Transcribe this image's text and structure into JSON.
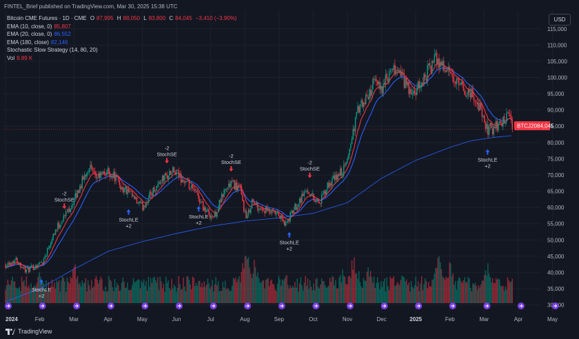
{
  "header": {
    "text": "FINTEL_Brief published on TradingView.com, Mar 30, 2025 15:38 UTC"
  },
  "legend": {
    "symbol": "Bitcoin CME Futures · 1D · CME",
    "ohlc": [
      {
        "label": "O",
        "value": "87,995"
      },
      {
        "label": "H",
        "value": "88,050"
      },
      {
        "label": "L",
        "value": "83,800"
      },
      {
        "label": "C",
        "value": "84,045"
      }
    ],
    "change": "−3,410 (−3.90%)",
    "ema10": {
      "label": "EMA (10, close, 0)",
      "value": "85,807"
    },
    "ema20": {
      "label": "EMA (20, close, 0)",
      "value": "86,552"
    },
    "ema180": {
      "label": "EMA (180, close)",
      "value": "82,146"
    },
    "strategy": "Stochastic Slow Strategy (14, 80, 20)",
    "vol": {
      "label": "Vol",
      "value": "9.89 K"
    }
  },
  "currency_button": "USD",
  "price_tag": {
    "symbol": "BTCJ2025",
    "value": "84,045"
  },
  "footer": {
    "brand": "TradingView"
  },
  "colors": {
    "background": "#131722",
    "bull": "#089981",
    "bear": "#f23645",
    "ema_fast": "#f23645",
    "ema_mid": "#2962ff",
    "ema_slow": "#2962ff"
  },
  "chart_data": {
    "type": "candlestick",
    "y_ticks": [
      30000,
      35000,
      40000,
      45000,
      50000,
      55000,
      60000,
      65000,
      70000,
      75000,
      80000,
      85000,
      90000,
      95000,
      100000,
      105000,
      110000,
      115000
    ],
    "y_tick_labels": [
      "30,000",
      "35,000",
      "40,000",
      "45,000",
      "50,000",
      "55,000",
      "60,000",
      "65,000",
      "70,000",
      "75,000",
      "80,000",
      "85,000",
      "90,000",
      "95,000",
      "100,000",
      "105,000",
      "110,000",
      "115,000"
    ],
    "ylim": [
      28000,
      117500
    ],
    "x_labels": [
      {
        "label": "2024",
        "month": 0,
        "bold": true
      },
      {
        "label": "Feb",
        "month": 1
      },
      {
        "label": "Mar",
        "month": 2
      },
      {
        "label": "Apr",
        "month": 3
      },
      {
        "label": "May",
        "month": 4
      },
      {
        "label": "Jun",
        "month": 5
      },
      {
        "label": "Jul",
        "month": 6
      },
      {
        "label": "Aug",
        "month": 7
      },
      {
        "label": "Sep",
        "month": 8
      },
      {
        "label": "Oct",
        "month": 9
      },
      {
        "label": "Nov",
        "month": 10
      },
      {
        "label": "Dec",
        "month": 11
      },
      {
        "label": "2025",
        "month": 12,
        "bold": true
      },
      {
        "label": "Feb",
        "month": 13
      },
      {
        "label": "Mar",
        "month": 14
      },
      {
        "label": "Apr",
        "month": 15
      },
      {
        "label": "May",
        "month": 16
      }
    ],
    "price_path": [
      [
        0,
        42500
      ],
      [
        0.3,
        44000
      ],
      [
        0.6,
        40500
      ],
      [
        0.8,
        41500
      ],
      [
        1.1,
        43500
      ],
      [
        1.4,
        52000
      ],
      [
        1.7,
        57000
      ],
      [
        2.0,
        62000
      ],
      [
        2.2,
        67000
      ],
      [
        2.45,
        73000
      ],
      [
        2.6,
        69000
      ],
      [
        2.8,
        70000
      ],
      [
        3.0,
        71000
      ],
      [
        3.2,
        69500
      ],
      [
        3.4,
        66000
      ],
      [
        3.6,
        64500
      ],
      [
        3.8,
        62000
      ],
      [
        4.0,
        60000
      ],
      [
        4.3,
        65000
      ],
      [
        4.6,
        69000
      ],
      [
        4.9,
        71000
      ],
      [
        5.1,
        69500
      ],
      [
        5.3,
        67000
      ],
      [
        5.6,
        64000
      ],
      [
        5.85,
        59000
      ],
      [
        6.1,
        57000
      ],
      [
        6.4,
        65000
      ],
      [
        6.6,
        67500
      ],
      [
        6.85,
        66000
      ],
      [
        7.05,
        56000
      ],
      [
        7.2,
        62000
      ],
      [
        7.4,
        60000
      ],
      [
        7.7,
        58500
      ],
      [
        8.0,
        57500
      ],
      [
        8.2,
        54500
      ],
      [
        8.4,
        59000
      ],
      [
        8.7,
        64000
      ],
      [
        8.85,
        65500
      ],
      [
        9.0,
        63000
      ],
      [
        9.2,
        61500
      ],
      [
        9.45,
        67000
      ],
      [
        9.7,
        69500
      ],
      [
        9.95,
        72500
      ],
      [
        10.1,
        80000
      ],
      [
        10.3,
        90000
      ],
      [
        10.5,
        92000
      ],
      [
        10.75,
        98000
      ],
      [
        11.0,
        97000
      ],
      [
        11.2,
        100000
      ],
      [
        11.45,
        103000
      ],
      [
        11.7,
        98000
      ],
      [
        11.9,
        94000
      ],
      [
        12.1,
        97000
      ],
      [
        12.35,
        102000
      ],
      [
        12.6,
        106000
      ],
      [
        12.85,
        103000
      ],
      [
        13.1,
        99000
      ],
      [
        13.4,
        96000
      ],
      [
        13.65,
        95000
      ],
      [
        13.9,
        90000
      ],
      [
        14.05,
        84000
      ],
      [
        14.3,
        84500
      ],
      [
        14.55,
        86500
      ],
      [
        14.75,
        88000
      ],
      [
        14.85,
        84045
      ]
    ],
    "ema180_path": [
      [
        0,
        31000
      ],
      [
        1,
        35000
      ],
      [
        2,
        41000
      ],
      [
        3,
        46500
      ],
      [
        4,
        49500
      ],
      [
        5,
        52000
      ],
      [
        6,
        54200
      ],
      [
        7,
        55800
      ],
      [
        8,
        56800
      ],
      [
        9,
        58200
      ],
      [
        10,
        61500
      ],
      [
        11,
        69000
      ],
      [
        12,
        74500
      ],
      [
        13,
        78500
      ],
      [
        13.6,
        80500
      ],
      [
        14.3,
        81600
      ],
      [
        14.85,
        82146
      ]
    ],
    "signals": [
      {
        "label": "StochLE",
        "value": "+2",
        "side": "long",
        "month": 1.05,
        "price": 40500
      },
      {
        "label": "StochSE",
        "value": "-2",
        "side": "short",
        "month": 1.72,
        "price": 57000
      },
      {
        "label": "StochLE",
        "value": "+2",
        "side": "long",
        "month": 3.6,
        "price": 62000
      },
      {
        "label": "StochSE",
        "value": "-2",
        "side": "short",
        "month": 4.72,
        "price": 71000
      },
      {
        "label": "StochLE",
        "value": "+2",
        "side": "long",
        "month": 5.65,
        "price": 63000
      },
      {
        "label": "StochSE",
        "value": "-2",
        "side": "short",
        "month": 6.6,
        "price": 68500
      },
      {
        "label": "StochLE",
        "value": "+2",
        "side": "long",
        "month": 8.3,
        "price": 55000
      },
      {
        "label": "StochSE",
        "value": "-2",
        "side": "short",
        "month": 8.9,
        "price": 66500
      },
      {
        "label": "StochLE",
        "value": "+2",
        "side": "long",
        "month": 14.1,
        "price": 80500
      }
    ],
    "last_price": 84045,
    "volume_peak_note": "relative heights",
    "volume_peaks": [
      [
        1.0,
        0.55
      ],
      [
        2.0,
        0.7
      ],
      [
        6.9,
        0.45
      ],
      [
        7.05,
        0.95
      ],
      [
        7.3,
        0.8
      ],
      [
        8.2,
        0.5
      ],
      [
        9.85,
        0.55
      ],
      [
        10.2,
        0.85
      ],
      [
        10.6,
        0.65
      ],
      [
        11.6,
        0.6
      ],
      [
        12.7,
        0.9
      ],
      [
        13.0,
        0.7
      ],
      [
        14.1,
        0.7
      ]
    ]
  }
}
